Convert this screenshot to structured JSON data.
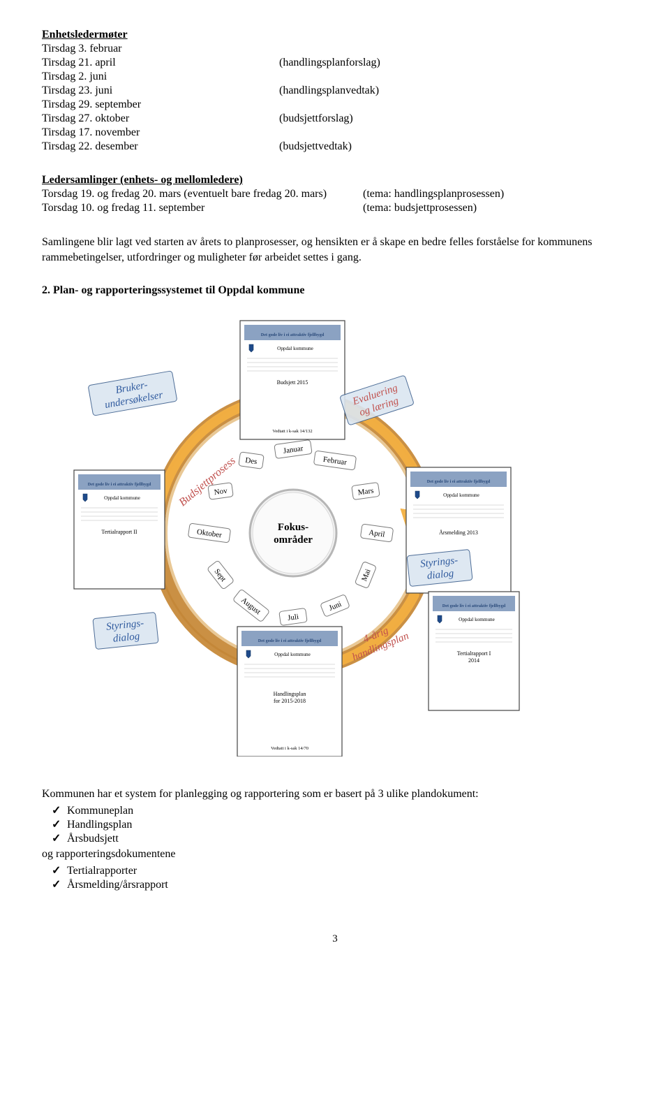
{
  "section1": {
    "title": "Enhetsledermøter",
    "rows": [
      {
        "left": "Tirsdag 3. februar",
        "right": ""
      },
      {
        "left": "Tirsdag 21. april",
        "right": "(handlingsplanforslag)"
      },
      {
        "left": "Tirsdag 2. juni",
        "right": ""
      },
      {
        "left": "Tirsdag 23. juni",
        "right": "(handlingsplanvedtak)"
      },
      {
        "left": "Tirsdag 29. september",
        "right": ""
      },
      {
        "left": "Tirsdag 27. oktober",
        "right": "(budsjettforslag)"
      },
      {
        "left": "Tirsdag 17. november",
        "right": ""
      },
      {
        "left": "Tirsdag 22. desember",
        "right": "(budsjettvedtak)"
      }
    ]
  },
  "section2": {
    "title": "Ledersamlinger (enhets- og mellomledere)",
    "rows": [
      {
        "left": "Torsdag 19. og fredag 20. mars (eventuelt bare fredag 20. mars)",
        "right": "(tema: handlingsplanprosessen)"
      },
      {
        "left": "Torsdag 10. og fredag 11. september",
        "right": "(tema: budsjettprosessen)"
      }
    ]
  },
  "paragraph": "Samlingene blir lagt ved starten av årets to planprosesser, og hensikten er å skape en bedre felles forståelse for kommunens rammebetingelser, utfordringer og muligheter før arbeidet settes i gang.",
  "heading2": "2. Plan- og rapporteringssystemet til Oppdal kommune",
  "diagram": {
    "center": "Fokus-\nområder",
    "months": [
      "Januar",
      "Februar",
      "Mars",
      "April",
      "Mai",
      "Juni",
      "Juli",
      "August",
      "Sept",
      "Oktober",
      "Nov",
      "Des"
    ],
    "labels": {
      "topLeft": "Bruker-\nundersøkelser",
      "topRight": "Evaluering\nog læring",
      "left": "Budsjettprosess",
      "bottomLeft": "Styrings-\ndialog",
      "right": "Styrings-\ndialog",
      "bottomRight": "4-årig\nhandlingsplan"
    },
    "docs": {
      "d1_title": "Oppdal kommune",
      "d1_sub": "Tertialrapport II",
      "d2_title": "Oppdal kommune",
      "d2_sub": "Budsjett 2015",
      "d2_line": "Vedtatt i k-sak 14/132",
      "d3_title": "Oppdal kommune",
      "d3_sub": "Årsmelding 2013",
      "d4_title": "Oppdal kommune",
      "d4_sub": "Tertialrapport I\n2014",
      "d5_title": "Oppdal kommune",
      "d5_sub": "Handlingsplan\nfor 2015-2018",
      "d5_line": "Vedtatt i k-sak 14/70",
      "tagline": "Det gode liv i ei attraktiv fjellbygd"
    },
    "colors": {
      "ring": "#c78a3a",
      "arrow": "#f4b042",
      "boxFill": "#dbe6f1",
      "boxStroke": "#3b5e8c",
      "labelBlue": "#2f5a9e",
      "labelRed": "#c0504d",
      "monthFill": "#ffffff",
      "monthStroke": "#7a7a7a",
      "docBorder": "#444",
      "docHeader": "#5a7aa8"
    }
  },
  "bottom": {
    "intro": "Kommunen har et system for planlegging og rapportering som er basert på 3 ulike plandokument:",
    "planItems": [
      "Kommuneplan",
      "Handlingsplan",
      "Årsbudsjett"
    ],
    "mid": "og rapporteringsdokumentene",
    "reportItems": [
      "Tertialrapporter",
      "Årsmelding/årsrapport"
    ]
  },
  "pageNumber": "3"
}
